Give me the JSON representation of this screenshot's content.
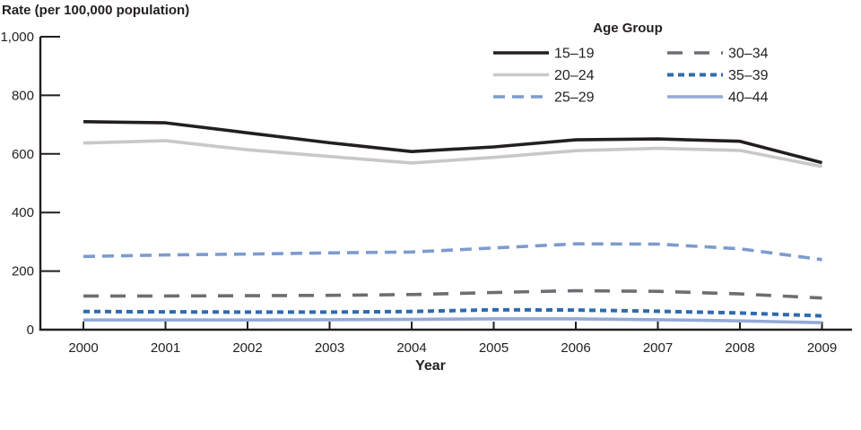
{
  "page": {
    "background": "#ffffff"
  },
  "chart_data": {
    "type": "line",
    "title": "Rate (per 100,000 population)",
    "xlabel": "Year",
    "ylabel": "Rate (per 100,000 population)",
    "legend_title": "Age Group",
    "legend_position": "top-right",
    "grid": false,
    "x": [
      2000,
      2001,
      2002,
      2003,
      2004,
      2005,
      2006,
      2007,
      2008,
      2009
    ],
    "ylim": [
      0,
      1000
    ],
    "yticks": [
      0,
      200,
      400,
      600,
      800,
      1000
    ],
    "ytick_labels": [
      "0",
      "200",
      "400",
      "600",
      "800",
      "1,000"
    ],
    "axis_color": "#231f20",
    "series": [
      {
        "name": "15–19",
        "color": "#231f20",
        "dash": "solid",
        "width": 3.6,
        "values": [
          710,
          706,
          672,
          638,
          608,
          624,
          648,
          651,
          643,
          570
        ]
      },
      {
        "name": "20–24",
        "color": "#c6c8ca",
        "dash": "solid",
        "width": 3.6,
        "values": [
          637,
          645,
          614,
          591,
          569,
          588,
          611,
          619,
          612,
          557
        ]
      },
      {
        "name": "25–29",
        "color": "#7d9bce",
        "dash": "13 8",
        "width": 3.6,
        "values": [
          250,
          255,
          258,
          262,
          265,
          279,
          293,
          292,
          276,
          239
        ]
      },
      {
        "name": "30–34",
        "color": "#6d6e71",
        "dash": "17 13",
        "width": 3.6,
        "values": [
          115,
          115,
          116,
          117,
          120,
          127,
          133,
          131,
          122,
          108
        ]
      },
      {
        "name": "35–39",
        "color": "#2f6bae",
        "dash": "7 5",
        "width": 4,
        "values": [
          62,
          61,
          60,
          60,
          62,
          68,
          67,
          63,
          57,
          47
        ]
      },
      {
        "name": "40–44",
        "color": "#94aad6",
        "dash": "solid",
        "width": 3.6,
        "values": [
          33,
          33,
          33,
          34,
          35,
          37,
          37,
          34,
          30,
          24
        ]
      }
    ],
    "legend_columns": [
      [
        "15–19",
        "20–24",
        "25–29"
      ],
      [
        "30–34",
        "35–39",
        "40–44"
      ]
    ]
  }
}
